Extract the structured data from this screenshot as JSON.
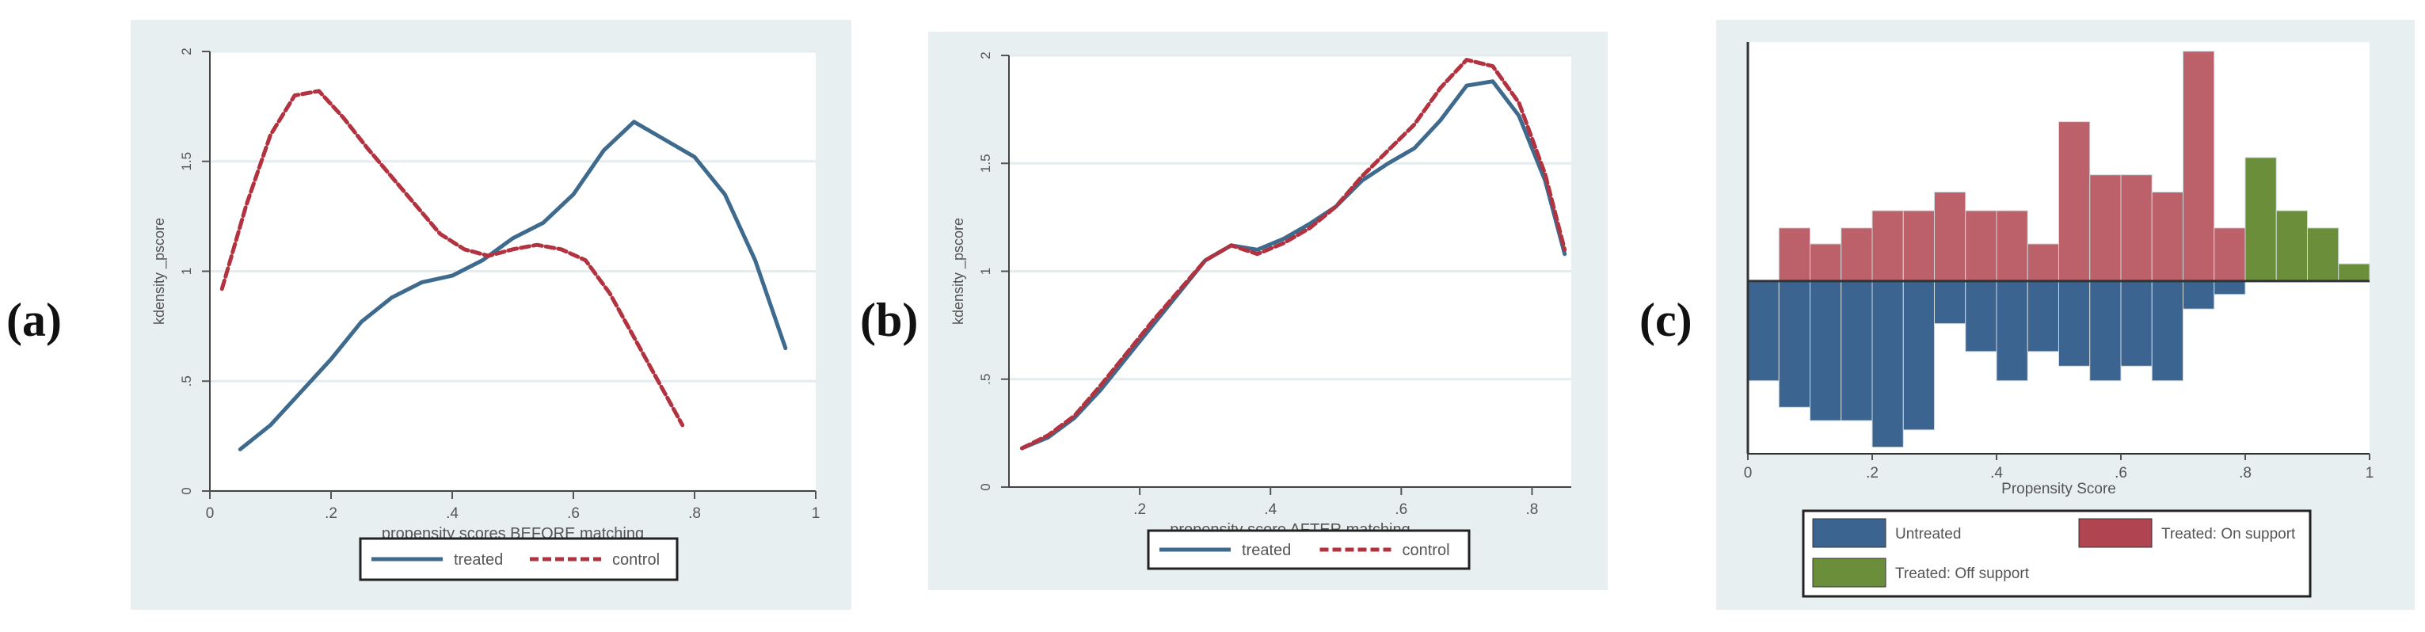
{
  "panel_labels": [
    "(a)",
    "(b)",
    "(c)"
  ],
  "colors": {
    "panel_bg": "#e8eff0",
    "plot_bg": "#ffffff",
    "treated": "#3e6a8e",
    "control": "#b2333f",
    "untreated_bar": "#3b6590",
    "treated_on_bar": "#b04450",
    "treated_off_bar": "#6a8e3a",
    "grid": "#e3ecee"
  },
  "chart_data": [
    {
      "type": "line",
      "title": "",
      "xlabel": "propensity scores BEFORE matching",
      "ylabel": "kdensity _pscore",
      "xlim": [
        0,
        1
      ],
      "ylim": [
        0,
        2
      ],
      "xticks": [
        0,
        0.2,
        0.4,
        0.6,
        0.8,
        1
      ],
      "xtick_labels": [
        "0",
        ".2",
        ".4",
        ".6",
        ".8",
        "1"
      ],
      "yticks": [
        0,
        0.5,
        1,
        1.5,
        2
      ],
      "ytick_labels": [
        "0",
        ".5",
        "1",
        "1.5",
        "2"
      ],
      "grid": true,
      "legend": "bottom",
      "series": [
        {
          "name": "treated",
          "style": "solid",
          "x": [
            0.05,
            0.1,
            0.15,
            0.2,
            0.25,
            0.3,
            0.35,
            0.4,
            0.45,
            0.5,
            0.55,
            0.6,
            0.65,
            0.7,
            0.75,
            0.8,
            0.85,
            0.9,
            0.95
          ],
          "y": [
            0.19,
            0.3,
            0.45,
            0.6,
            0.77,
            0.88,
            0.95,
            0.98,
            1.05,
            1.15,
            1.22,
            1.35,
            1.55,
            1.68,
            1.6,
            1.52,
            1.35,
            1.05,
            0.65
          ]
        },
        {
          "name": "control",
          "style": "dashed",
          "x": [
            0.02,
            0.06,
            0.1,
            0.14,
            0.18,
            0.22,
            0.26,
            0.3,
            0.34,
            0.38,
            0.42,
            0.46,
            0.5,
            0.54,
            0.58,
            0.62,
            0.66,
            0.7,
            0.74,
            0.78
          ],
          "y": [
            0.92,
            1.3,
            1.62,
            1.8,
            1.82,
            1.7,
            1.56,
            1.43,
            1.3,
            1.17,
            1.1,
            1.07,
            1.1,
            1.12,
            1.1,
            1.05,
            0.9,
            0.7,
            0.5,
            0.3
          ]
        }
      ]
    },
    {
      "type": "line",
      "title": "",
      "xlabel": "propensity score AFTER matching",
      "ylabel": "kdensity _pscore",
      "xlim": [
        0,
        0.86
      ],
      "ylim": [
        0,
        2
      ],
      "xticks": [
        0.2,
        0.4,
        0.6,
        0.8
      ],
      "xtick_labels": [
        ".2",
        ".4",
        ".6",
        ".8"
      ],
      "yticks": [
        0,
        0.5,
        1,
        1.5,
        2
      ],
      "ytick_labels": [
        "0",
        ".5",
        "1",
        "1.5",
        "2"
      ],
      "grid": true,
      "legend": "bottom",
      "series": [
        {
          "name": "treated",
          "style": "solid",
          "x": [
            0.02,
            0.06,
            0.1,
            0.14,
            0.18,
            0.22,
            0.26,
            0.3,
            0.34,
            0.38,
            0.42,
            0.46,
            0.5,
            0.54,
            0.58,
            0.62,
            0.66,
            0.7,
            0.74,
            0.78,
            0.82,
            0.85
          ],
          "y": [
            0.18,
            0.23,
            0.32,
            0.45,
            0.6,
            0.75,
            0.9,
            1.05,
            1.12,
            1.1,
            1.15,
            1.22,
            1.3,
            1.42,
            1.5,
            1.57,
            1.7,
            1.86,
            1.88,
            1.72,
            1.42,
            1.08
          ]
        },
        {
          "name": "control",
          "style": "dashed",
          "x": [
            0.02,
            0.06,
            0.1,
            0.14,
            0.18,
            0.22,
            0.26,
            0.3,
            0.34,
            0.38,
            0.42,
            0.46,
            0.5,
            0.54,
            0.58,
            0.62,
            0.66,
            0.7,
            0.74,
            0.78,
            0.82,
            0.85
          ],
          "y": [
            0.18,
            0.24,
            0.33,
            0.47,
            0.62,
            0.77,
            0.91,
            1.05,
            1.12,
            1.08,
            1.13,
            1.2,
            1.3,
            1.44,
            1.56,
            1.68,
            1.85,
            1.98,
            1.95,
            1.78,
            1.45,
            1.1
          ]
        }
      ]
    },
    {
      "type": "bar",
      "title": "",
      "xlabel": "Propensity Score",
      "xlim": [
        0,
        1
      ],
      "xticks": [
        0,
        0.2,
        0.4,
        0.6,
        0.8,
        1
      ],
      "xtick_labels": [
        "0",
        ".2",
        ".4",
        ".6",
        ".8",
        "1"
      ],
      "ylim": [
        -13,
        18
      ],
      "grid": false,
      "legend": "bottom",
      "bin_width": 0.05,
      "series": [
        {
          "name": "Untreated",
          "bin_starts": [
            0.0,
            0.05,
            0.1,
            0.15,
            0.2,
            0.25,
            0.3,
            0.35,
            0.4,
            0.45,
            0.5,
            0.55,
            0.6,
            0.65,
            0.7,
            0.75
          ],
          "values": [
            -7.5,
            -9.5,
            -10.5,
            -10.5,
            -12.5,
            -11.2,
            -3.2,
            -5.3,
            -7.5,
            -5.3,
            -6.4,
            -7.5,
            -6.4,
            -7.5,
            -2.1,
            -1.0
          ]
        },
        {
          "name": "Treated: On support",
          "bin_starts": [
            0.05,
            0.1,
            0.15,
            0.2,
            0.25,
            0.3,
            0.35,
            0.4,
            0.45,
            0.5,
            0.55,
            0.6,
            0.65,
            0.7,
            0.75,
            0.8
          ],
          "values": [
            4.0,
            2.8,
            4.0,
            5.3,
            5.3,
            6.7,
            5.3,
            5.3,
            2.8,
            12.0,
            8.0,
            8.0,
            6.7,
            17.3,
            4.0,
            0
          ]
        },
        {
          "name": "Treated: Off support",
          "bin_starts": [
            0.8,
            0.85,
            0.9,
            0.95
          ],
          "values": [
            9.3,
            5.3,
            4.0,
            1.3
          ]
        }
      ]
    }
  ]
}
